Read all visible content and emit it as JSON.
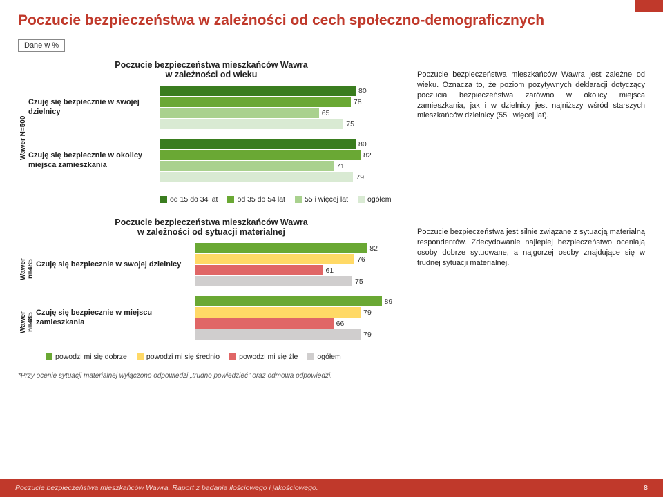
{
  "colors": {
    "accent": "#c0392b",
    "green_dark": "#3a7d1f",
    "green_mid": "#6aa834",
    "green_light": "#a9d18e",
    "green_pale": "#d9ead3",
    "yellow": "#ffd966",
    "red": "#e06666",
    "gray": "#d0cece"
  },
  "page": {
    "title": "Poczucie bezpieczeństwa w zależności od cech społeczno-demograficznych",
    "badge": "Dane w %",
    "footnote": "*Przy ocenie sytuacji materialnej wyłączono odpowiedzi „trudno powiedzieć\" oraz odmowa odpowiedzi.",
    "footer_text": "Poczucie bezpieczeństwa mieszkańców Wawra. Raport z badania ilościowego i jakościowego.",
    "page_num": "8"
  },
  "chart1": {
    "title": "Poczucie bezpieczeństwa mieszkańców Wawra\nw zależności od wieku",
    "ylabel": "Wawer N=500",
    "scale_max": 100,
    "groups": [
      {
        "label": "Czuję się bezpiecznie w swojej dzielnicy",
        "bars": [
          {
            "value": 80,
            "color": "green_dark"
          },
          {
            "value": 78,
            "color": "green_mid"
          },
          {
            "value": 65,
            "color": "green_light"
          },
          {
            "value": 75,
            "color": "green_pale"
          }
        ]
      },
      {
        "label": "Czuję się bezpiecznie w okolicy miejsca zamieszkania",
        "bars": [
          {
            "value": 80,
            "color": "green_dark"
          },
          {
            "value": 82,
            "color": "green_mid"
          },
          {
            "value": 71,
            "color": "green_light"
          },
          {
            "value": 79,
            "color": "green_pale"
          }
        ]
      }
    ],
    "legend": [
      {
        "label": "od 15 do 34 lat",
        "color": "green_dark"
      },
      {
        "label": "od 35 do 54 lat",
        "color": "green_mid"
      },
      {
        "label": "55 i więcej lat",
        "color": "green_light"
      },
      {
        "label": "ogółem",
        "color": "green_pale"
      }
    ],
    "desc": "Poczucie bezpieczeństwa mieszkańców Wawra jest zależne od wieku. Oznacza to, że poziom pozytywnych deklaracji dotyczący poczucia bezpieczeństwa zarówno w okolicy miejsca zamieszkania, jak i w dzielnicy jest najniższy wśród starszych mieszkańców dzielnicy (55 i więcej lat)."
  },
  "chart2": {
    "title": "Poczucie bezpieczeństwa mieszkańców Wawra\nw zależności od sytuacji materialnej",
    "ylabel1": "Wawer\nn=485",
    "ylabel2": "Wawer\nn=485",
    "scale_max": 100,
    "groups": [
      {
        "label": "Czuję się bezpiecznie w swojej dzielnicy",
        "bars": [
          {
            "value": 82,
            "color": "green_mid"
          },
          {
            "value": 76,
            "color": "yellow"
          },
          {
            "value": 61,
            "color": "red"
          },
          {
            "value": 75,
            "color": "gray"
          }
        ]
      },
      {
        "label": "Czuję się bezpiecznie w miejscu zamieszkania",
        "bars": [
          {
            "value": 89,
            "color": "green_mid"
          },
          {
            "value": 79,
            "color": "yellow"
          },
          {
            "value": 66,
            "color": "red"
          },
          {
            "value": 79,
            "color": "gray"
          }
        ]
      }
    ],
    "legend": [
      {
        "label": "powodzi mi się dobrze",
        "color": "green_mid"
      },
      {
        "label": "powodzi mi się średnio",
        "color": "yellow"
      },
      {
        "label": "powodzi mi się źle",
        "color": "red"
      },
      {
        "label": "ogółem",
        "color": "gray"
      }
    ],
    "desc": "Poczucie bezpieczeństwa jest silnie związane z sytuacją materialną respondentów. Zdecydowanie najlepiej bezpieczeństwo oceniają osoby dobrze sytuowane, a najgorzej osoby znajdujące się w trudnej sytuacji materialnej."
  }
}
